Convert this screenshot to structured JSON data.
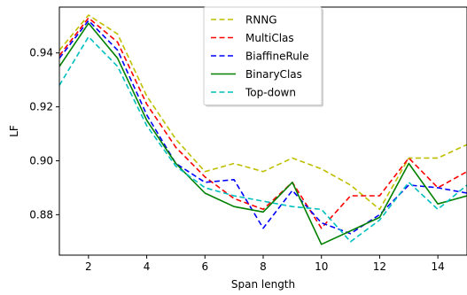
{
  "chart_data": {
    "type": "line",
    "title": "",
    "xlabel": "Span length",
    "ylabel": "LF",
    "xlim": [
      1,
      15
    ],
    "ylim": [
      0.865,
      0.957
    ],
    "x": [
      1,
      2,
      3,
      4,
      5,
      6,
      7,
      8,
      9,
      10,
      11,
      12,
      13,
      14,
      15
    ],
    "xticks": [
      2,
      4,
      6,
      8,
      10,
      12,
      14
    ],
    "xtick_labels": [
      "2",
      "4",
      "6",
      "8",
      "10",
      "12",
      "14"
    ],
    "yticks": [
      0.88,
      0.9,
      0.92,
      0.94
    ],
    "ytick_labels": [
      "0.88",
      "0.90",
      "0.92",
      "0.94"
    ],
    "grid": false,
    "legend_position": "top-center",
    "series": [
      {
        "name": "RNNG",
        "color": "#bfbf00",
        "dash": "dashed",
        "values": [
          0.941,
          0.954,
          0.947,
          0.924,
          0.908,
          0.896,
          0.899,
          0.896,
          0.901,
          0.897,
          0.891,
          0.882,
          0.901,
          0.901,
          0.906
        ]
      },
      {
        "name": "MultiClas",
        "color": "#ff0000",
        "dash": "dashed",
        "values": [
          0.939,
          0.953,
          0.944,
          0.921,
          0.905,
          0.894,
          0.886,
          0.882,
          0.892,
          0.875,
          0.887,
          0.887,
          0.901,
          0.89,
          0.896
        ]
      },
      {
        "name": "BiaffineRule",
        "color": "#0000ff",
        "dash": "dashed",
        "values": [
          0.938,
          0.952,
          0.941,
          0.917,
          0.899,
          0.892,
          0.893,
          0.875,
          0.889,
          0.877,
          0.873,
          0.88,
          0.891,
          0.89,
          0.888
        ]
      },
      {
        "name": "BinaryClas",
        "color": "#008000",
        "dash": "solid",
        "values": [
          0.935,
          0.951,
          0.938,
          0.915,
          0.899,
          0.888,
          0.883,
          0.881,
          0.892,
          0.869,
          0.874,
          0.879,
          0.899,
          0.884,
          0.887
        ]
      },
      {
        "name": "Top-down",
        "color": "#00bfbf",
        "dash": "dashed",
        "values": [
          0.928,
          0.946,
          0.935,
          0.913,
          0.898,
          0.89,
          0.887,
          0.885,
          0.883,
          0.882,
          0.87,
          0.878,
          0.892,
          0.882,
          0.891
        ]
      }
    ]
  }
}
